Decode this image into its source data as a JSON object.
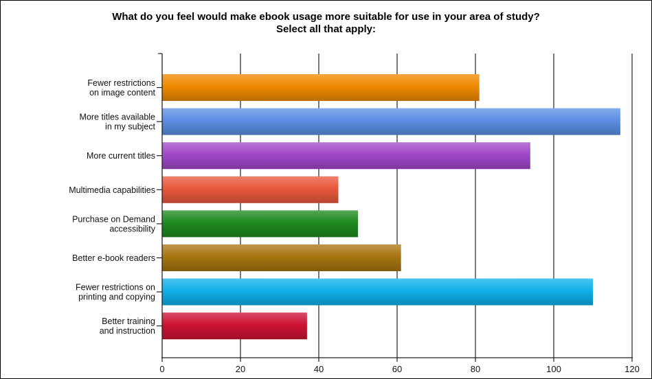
{
  "chart_data": {
    "type": "bar",
    "orientation": "horizontal",
    "title": "What do you feel would make ebook usage more suitable for use in your area of study?",
    "subtitle": "Select all that apply:",
    "categories": [
      [
        "Fewer restrictions",
        "on image content"
      ],
      [
        "More titles available",
        "in my subject"
      ],
      [
        "More current titles"
      ],
      [
        "Multimedia capabilities"
      ],
      [
        "Purchase on Demand",
        "accessibility"
      ],
      [
        "Better e-book readers"
      ],
      [
        "Fewer restrictions on",
        "printing and copying"
      ],
      [
        "Better training",
        "and instruction"
      ]
    ],
    "values": [
      81,
      117,
      94,
      45,
      50,
      61,
      110,
      37
    ],
    "colors": [
      "#f08a00",
      "#5b8fe3",
      "#a048c8",
      "#e8583c",
      "#1f8a1f",
      "#a77510",
      "#10b0ea",
      "#cc1234"
    ],
    "xlim": [
      0,
      120
    ],
    "xticks": [
      0,
      20,
      40,
      60,
      80,
      100,
      120
    ],
    "grid": true,
    "xlabel": "",
    "ylabel": ""
  }
}
